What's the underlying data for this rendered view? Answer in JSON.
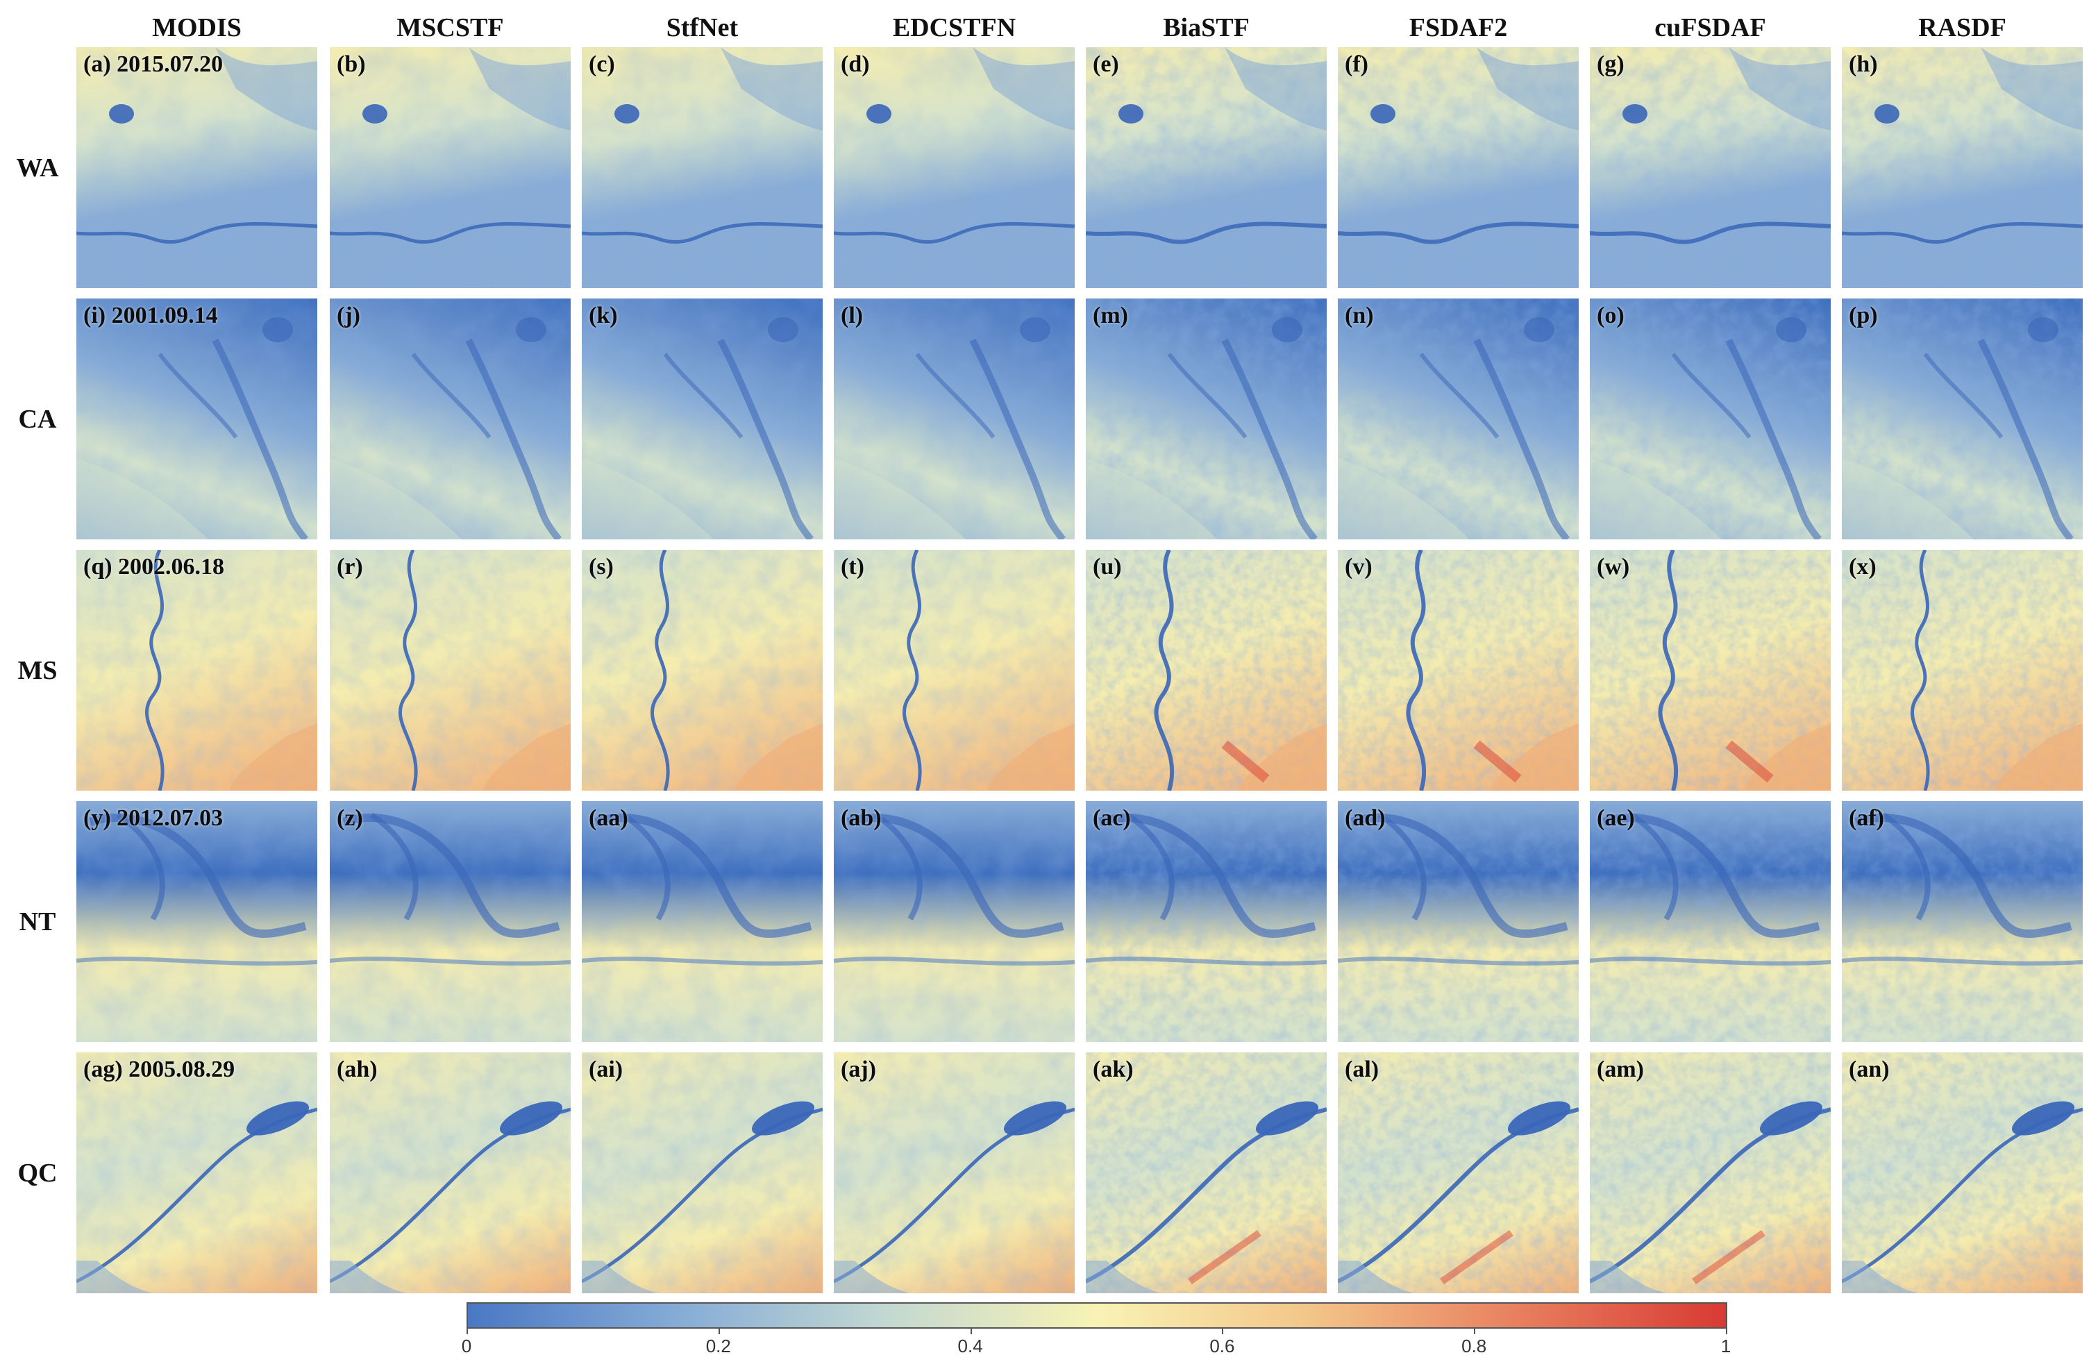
{
  "columns": [
    "MODIS",
    "MSCSTF",
    "StfNet",
    "EDCSTFN",
    "BiaSTF",
    "FSDAF2",
    "cuFSDAF",
    "RASDF"
  ],
  "rows": [
    {
      "label": "WA",
      "panels": [
        "(a) 2015.07.20",
        "(b)",
        "(c)",
        "(d)",
        "(e)",
        "(f)",
        "(g)",
        "(h)"
      ],
      "image_description": "Western region scene: bright yellow-green fields upper left with a dark blue crater lake, darker blue vegetation zone lower half, river crossing horizontally near bottom",
      "feature": "river-horizontal",
      "dominant": "yellow-blue"
    },
    {
      "label": "CA",
      "panels": [
        "(i) 2001.09.14",
        "(j)",
        "(k)",
        "(l)",
        "(m)",
        "(n)",
        "(o)",
        "(p)"
      ],
      "image_description": "Predominantly blue scene with dendritic drainage patterns and lighter yellowish diagonal band at lower left",
      "feature": "dendritic",
      "dominant": "blue"
    },
    {
      "label": "MS",
      "panels": [
        "(q) 2002.06.18",
        "(r)",
        "(s)",
        "(t)",
        "(u)",
        "(v)",
        "(w)",
        "(x)"
      ],
      "image_description": "Speckled yellow and orange agricultural field mosaic with a meandering blue river running vertically",
      "feature": "river-vertical",
      "dominant": "yellow-orange"
    },
    {
      "label": "NT",
      "panels": [
        "(y) 2012.07.03",
        "(z)",
        "(aa)",
        "(ab)",
        "(ac)",
        "(ad)",
        "(ae)",
        "(af)"
      ],
      "image_description": "Blue terrain with curved dark channels at top, lighter yellow band across the middle",
      "feature": "curves",
      "dominant": "blue-yellow"
    },
    {
      "label": "QC",
      "panels": [
        "(ag) 2005.08.29",
        "(ah)",
        "(ai)",
        "(aj)",
        "(ak)",
        "(al)",
        "(am)",
        "(an)"
      ],
      "image_description": "Pale yellow-orange landscape with a large blue river widening into a lake diagonally toward upper right",
      "feature": "river-diagonal",
      "dominant": "yellow-orange"
    }
  ],
  "colorbar": {
    "ticks": [
      "0",
      "0.2",
      "0.4",
      "0.6",
      "0.8",
      "1"
    ],
    "stops": [
      "#4a78c4",
      "#86acd6",
      "#c3d8d2",
      "#f8f3b4",
      "#f3c68a",
      "#e8805f",
      "#d83a33"
    ]
  },
  "palette": {
    "blue_dark": "#3f6fbf",
    "blue_light": "#88acd6",
    "pale": "#d4e2cc",
    "yellow": "#f4ecb0",
    "orange": "#f0b07a",
    "red": "#dd4b3a",
    "water": "#3a66b8"
  }
}
